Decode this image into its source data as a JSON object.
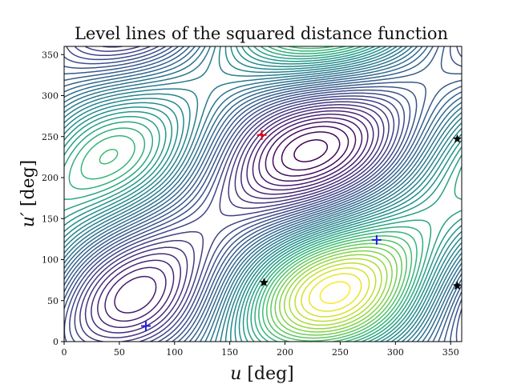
{
  "chart_data": {
    "type": "contour",
    "title": "Level lines of the squared distance function",
    "xlabel_symbol": "u",
    "xlabel_unit": " [deg]",
    "ylabel_symbol": "u′",
    "ylabel_unit": " [deg]",
    "xlim": [
      0,
      360
    ],
    "ylim": [
      0,
      360
    ],
    "xticks": [
      0,
      50,
      100,
      150,
      200,
      250,
      300,
      350
    ],
    "yticks": [
      0,
      50,
      100,
      150,
      200,
      250,
      300,
      350
    ],
    "grid": false,
    "colormap": "viridis",
    "colors": {
      "maximum": "#e8000b",
      "minimum": "#1f1fe0",
      "saddle": "#000000"
    },
    "markers": [
      {
        "kind": "maximum",
        "shape": "plus",
        "x": 179,
        "y": 252
      },
      {
        "kind": "minimum",
        "shape": "plus",
        "x": 74,
        "y": 19
      },
      {
        "kind": "minimum",
        "shape": "plus",
        "x": 283,
        "y": 124
      },
      {
        "kind": "saddle",
        "shape": "star",
        "x": 181,
        "y": 72
      },
      {
        "kind": "saddle",
        "shape": "star",
        "x": 356,
        "y": 68
      },
      {
        "kind": "saddle",
        "shape": "star",
        "x": 356,
        "y": 247
      }
    ]
  }
}
